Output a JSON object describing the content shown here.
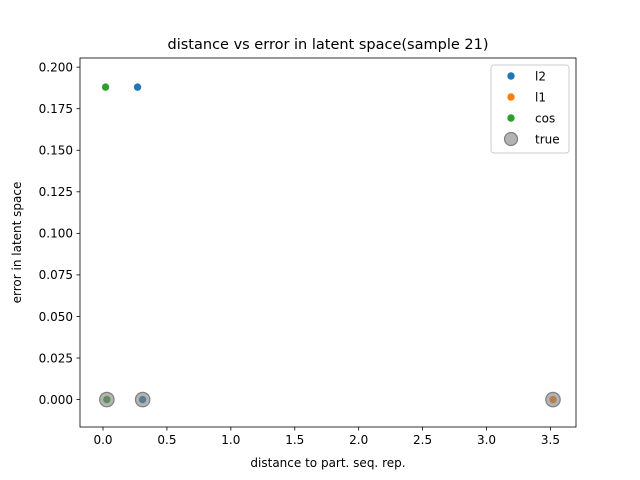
{
  "chart_data": {
    "type": "scatter",
    "title": "distance vs error in latent space(sample 21)",
    "xlabel": "distance to part. seq. rep.",
    "ylabel": "error in latent space",
    "xlim": [
      -0.18,
      3.7
    ],
    "ylim": [
      -0.0165,
      0.2055
    ],
    "xticks": [
      0.0,
      0.5,
      1.0,
      1.5,
      2.0,
      2.5,
      3.0,
      3.5
    ],
    "xtick_labels": [
      "0.0",
      "0.5",
      "1.0",
      "1.5",
      "2.0",
      "2.5",
      "3.0",
      "3.5"
    ],
    "yticks": [
      0.0,
      0.025,
      0.05,
      0.075,
      0.1,
      0.125,
      0.15,
      0.175,
      0.2
    ],
    "ytick_labels": [
      "0.000",
      "0.025",
      "0.050",
      "0.075",
      "0.100",
      "0.125",
      "0.150",
      "0.175",
      "0.200"
    ],
    "grid": false,
    "legend_position": "top-right",
    "series": [
      {
        "name": "l2",
        "color": "#1f77b4",
        "points": [
          [
            0.27,
            0.188
          ],
          [
            0.31,
            0.0
          ]
        ]
      },
      {
        "name": "l1",
        "color": "#ff7f0e",
        "points": [
          [
            3.52,
            0.0
          ]
        ]
      },
      {
        "name": "cos",
        "color": "#2ca02c",
        "points": [
          [
            0.02,
            0.188
          ],
          [
            0.03,
            0.0
          ]
        ]
      },
      {
        "name": "true",
        "color": "#808080",
        "marker": "large-translucent",
        "points": [
          [
            0.03,
            0.0
          ],
          [
            0.31,
            0.0
          ],
          [
            3.52,
            0.0
          ]
        ]
      }
    ]
  }
}
